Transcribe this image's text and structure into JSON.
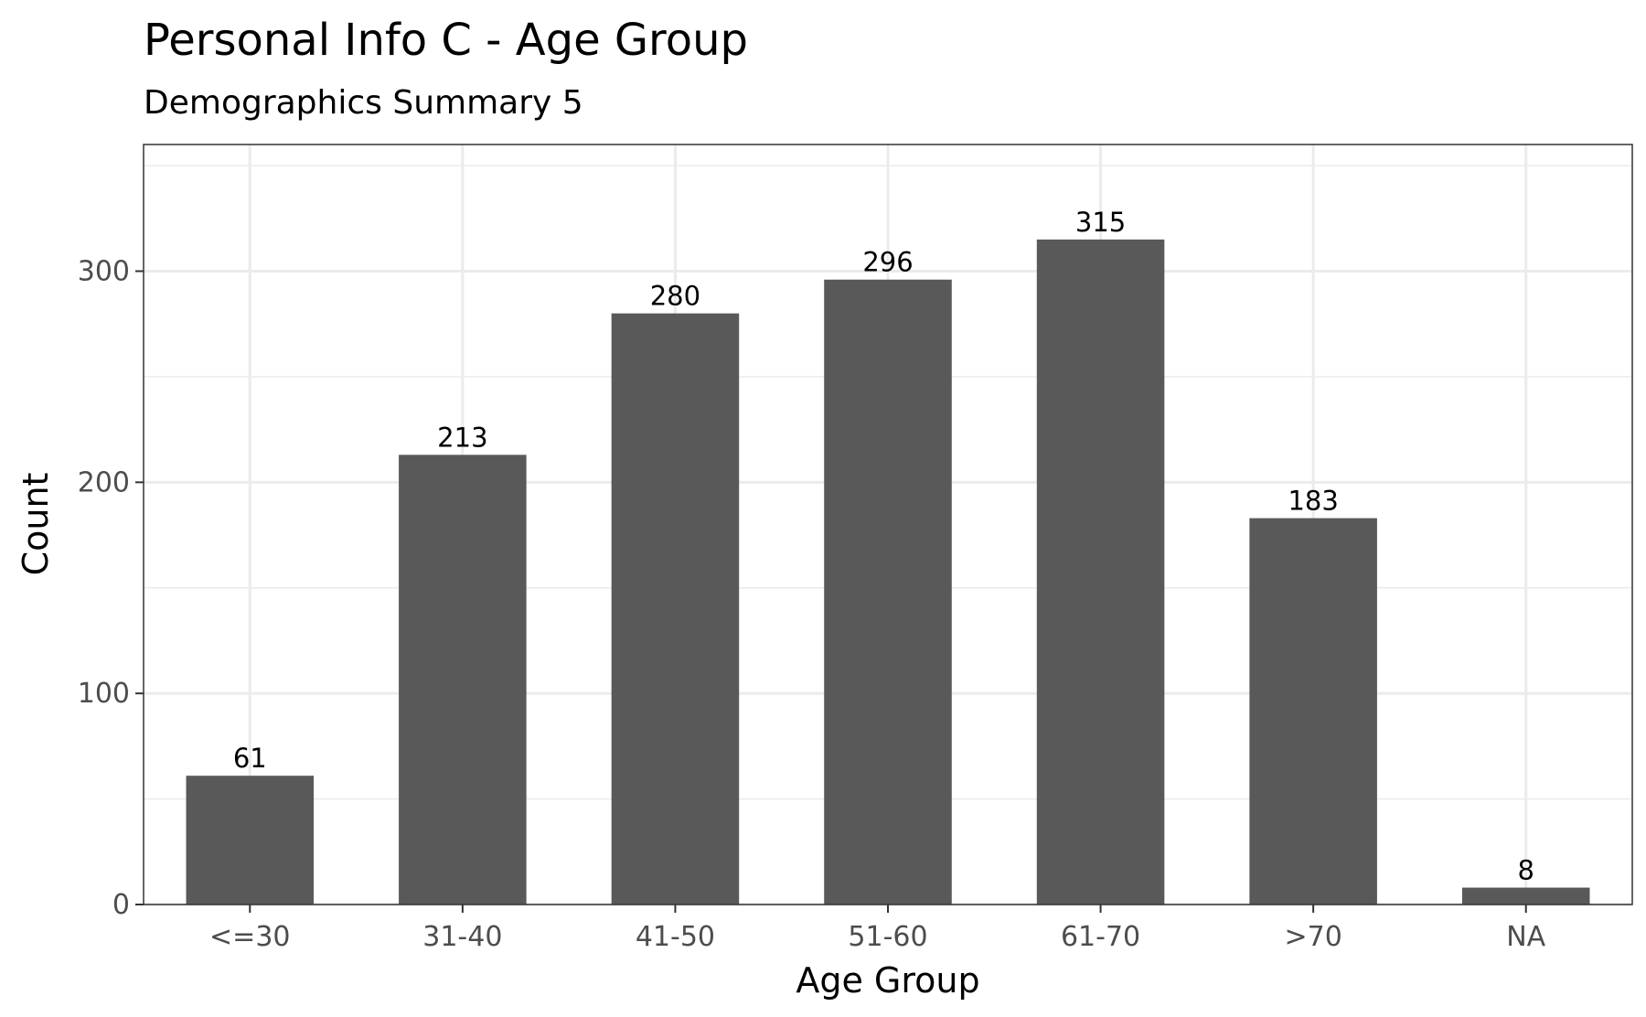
{
  "chart_data": {
    "type": "bar",
    "title": "Personal Info C - Age Group",
    "subtitle": "Demographics Summary 5",
    "xlabel": "Age Group",
    "ylabel": "Count",
    "categories": [
      "<=30",
      "31-40",
      "41-50",
      "51-60",
      "61-70",
      ">70",
      "NA"
    ],
    "values": [
      61,
      213,
      280,
      296,
      315,
      183,
      8
    ],
    "data_labels": [
      "61",
      "213",
      "280",
      "296",
      "315",
      "183",
      "8"
    ],
    "yticks": [
      0,
      100,
      200,
      300
    ],
    "ylim": [
      0,
      360
    ],
    "grid": true,
    "legend": "none",
    "colors": {
      "bar": "#595959",
      "grid": "#ebebeb",
      "border": "#333333"
    }
  }
}
